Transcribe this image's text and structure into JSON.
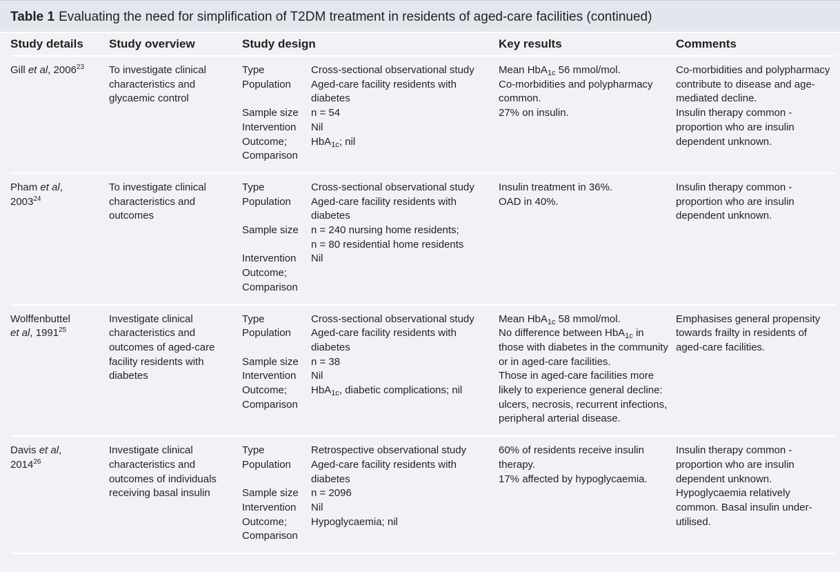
{
  "title": {
    "label": "Table 1",
    "text": "Evaluating the need for simplification of T2DM treatment in residents of aged-care facilities (continued)"
  },
  "table": {
    "headers": [
      "Study details",
      "Study overview",
      "Study design",
      "Key results",
      "Comments"
    ],
    "rows": [
      {
        "study": [
          "Gill",
          "et al",
          ",",
          "2006",
          "23"
        ],
        "overview": "To investigate clinical characteristics and glycaemic control",
        "design": [
          {
            "label": "Type",
            "value": "Cross-sectional observational study"
          },
          {
            "label": "Population",
            "value": "Aged-care facility residents with diabetes"
          },
          {
            "label": "Sample size",
            "value": "n = 54"
          },
          {
            "label": "Intervention",
            "value": "Nil"
          },
          {
            "label": "Outcome; Comparison",
            "value": [
              "HbA",
              "1c",
              "; nil"
            ]
          }
        ],
        "results": [
          [
            "Mean HbA",
            "1c",
            " 56 mmol/mol."
          ],
          "Co-morbidities and polypharmacy common.",
          "27% on insulin."
        ],
        "comments": [
          "Co-morbidities and polypharmacy contribute to disease and age-mediated decline.",
          "Insulin therapy common - proportion who are insulin dependent unknown."
        ]
      },
      {
        "study": [
          "Pham",
          "et al",
          ",",
          "2003",
          "24"
        ],
        "overview": "To investigate clinical characteristics and outcomes",
        "design": [
          {
            "label": "Type",
            "value": "Cross-sectional observational study"
          },
          {
            "label": "Population",
            "value": "Aged-care facility residents with diabetes"
          },
          {
            "label": "Sample size",
            "value": [
              "n = 240 nursing home residents;",
              "n = 80 residential home residents"
            ]
          },
          {
            "label": "Intervention",
            "value": "Nil"
          },
          {
            "label": "Outcome; Comparison"
          }
        ],
        "results": [
          "Insulin treatment in 36%.",
          "OAD in 40%."
        ],
        "comments": [
          "Insulin therapy common - proportion who are insulin dependent unknown."
        ]
      },
      {
        "study": [
          "Wolffenbuttel",
          "et al",
          ",",
          "1991",
          "25"
        ],
        "overview": "Investigate clinical characteristics and outcomes of aged-care facility residents with diabetes",
        "design": [
          {
            "label": "Type",
            "value": "Cross-sectional observational study"
          },
          {
            "label": "Population",
            "value": "Aged-care facility residents with diabetes"
          },
          {
            "label": "Sample size",
            "value": "n = 38"
          },
          {
            "label": "Intervention",
            "value": "Nil"
          },
          {
            "label": "Outcome; Comparison",
            "value": [
              "HbA",
              "1c",
              ", diabetic complications; nil"
            ]
          }
        ],
        "results": [
          [
            "Mean HbA",
            "1c",
            " 58 mmol/mol."
          ],
          [
            "No difference between HbA",
            "1c",
            " in those with diabetes in the community or in aged-care facilities."
          ],
          "Those in aged-care facilities more likely to experience general decline: ulcers, necrosis, recurrent infections, peripheral arterial disease."
        ],
        "comments": [
          "Emphasises general propensity towards frailty in residents of aged-care facilities."
        ]
      },
      {
        "study": [
          "Davis",
          "et al",
          ",",
          "2014",
          "26"
        ],
        "overview": "Investigate clinical characteristics and outcomes of individuals receiving basal insulin",
        "design": [
          {
            "label": "Type",
            "value": "Retrospective observational study"
          },
          {
            "label": "Population",
            "value": "Aged-care facility residents with diabetes"
          },
          {
            "label": "Sample size",
            "value": "n = 2096"
          },
          {
            "label": "Intervention",
            "value": "Nil"
          },
          {
            "label": "Outcome; Comparison",
            "value": "Hypoglycaemia; nil"
          }
        ],
        "results": [
          "60% of residents receive insulin therapy.",
          "17% affected by hypoglycaemia."
        ],
        "comments": [
          "Insulin therapy common - proportion who are insulin dependent unknown.",
          "Hypoglycaemia relatively common. Basal insulin under-utilised."
        ]
      }
    ]
  }
}
